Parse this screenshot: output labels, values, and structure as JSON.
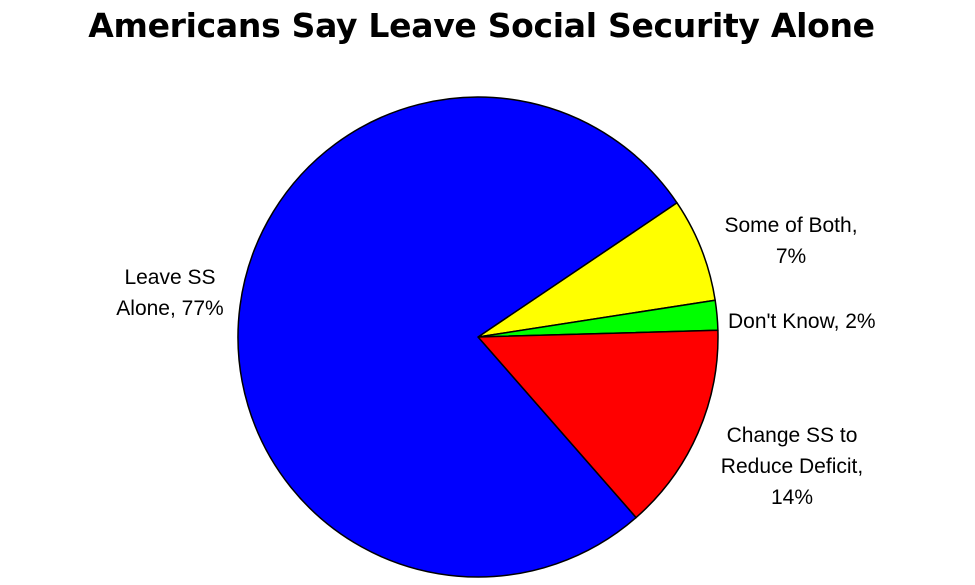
{
  "chart_data": {
    "type": "pie",
    "title": "Americans Say Leave Social Security Alone",
    "slices": [
      {
        "label_lines": [
          "Some of Both,",
          "7%"
        ],
        "value": 7,
        "color": "#ffff00"
      },
      {
        "label_lines": [
          "Don't Know, 2%"
        ],
        "value": 2,
        "color": "#00ff00"
      },
      {
        "label_lines": [
          "Change SS to",
          "Reduce Deficit,",
          "14%"
        ],
        "value": 14,
        "color": "#ff0000"
      },
      {
        "label_lines": [
          "Leave SS",
          "Alone, 77%"
        ],
        "value": 77,
        "color": "#0000ff"
      }
    ],
    "start_angle_deg": -34,
    "direction": "clockwise",
    "legend": "none"
  }
}
